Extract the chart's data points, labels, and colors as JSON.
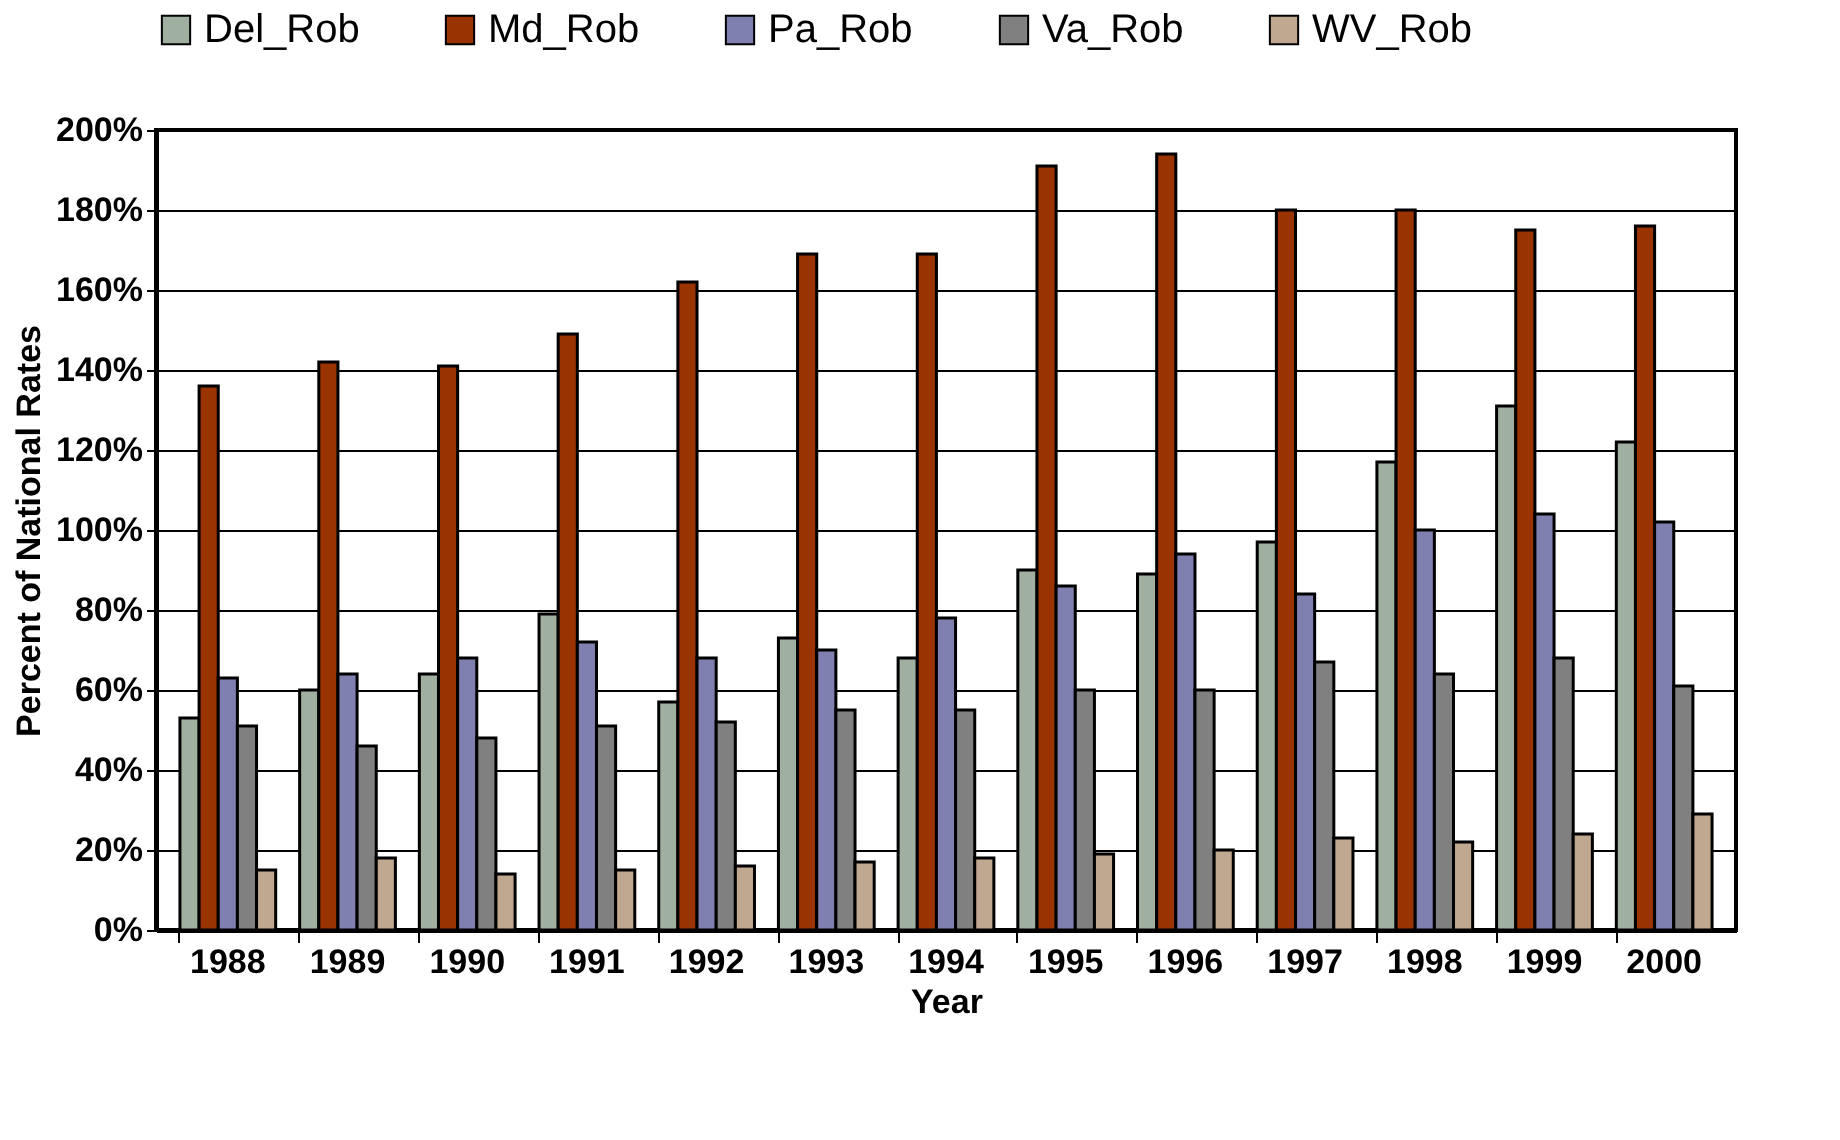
{
  "chart_data": {
    "type": "bar",
    "xlabel": "Year",
    "ylabel": "Percent of National Rates",
    "categories": [
      "1988",
      "1989",
      "1990",
      "1991",
      "1992",
      "1993",
      "1994",
      "1995",
      "1996",
      "1997",
      "1998",
      "1999",
      "2000"
    ],
    "series": [
      {
        "name": "Del_Rob",
        "color": "#a0b0a0",
        "values": [
          53,
          60,
          64,
          79,
          57,
          73,
          68,
          90,
          89,
          97,
          117,
          131,
          122
        ]
      },
      {
        "name": "Md_Rob",
        "color": "#993300",
        "values": [
          136,
          142,
          141,
          149,
          162,
          169,
          169,
          191,
          194,
          180,
          180,
          175,
          176
        ]
      },
      {
        "name": "Pa_Rob",
        "color": "#8080b0",
        "values": [
          63,
          64,
          68,
          72,
          68,
          70,
          78,
          86,
          94,
          84,
          100,
          104,
          102
        ]
      },
      {
        "name": "Va_Rob",
        "color": "#808080",
        "values": [
          51,
          46,
          48,
          51,
          52,
          55,
          55,
          60,
          60,
          67,
          64,
          68,
          61
        ]
      },
      {
        "name": "WV_Rob",
        "color": "#c0a890",
        "values": [
          15,
          18,
          14,
          15,
          16,
          17,
          18,
          19,
          20,
          23,
          22,
          24,
          29
        ]
      }
    ],
    "ylim": [
      0,
      200
    ],
    "yticks": [
      {
        "value": 0,
        "label": "0%"
      },
      {
        "value": 20,
        "label": "20%"
      },
      {
        "value": 40,
        "label": "40%"
      },
      {
        "value": 60,
        "label": "60%"
      },
      {
        "value": 80,
        "label": "80%"
      },
      {
        "value": 100,
        "label": "100%"
      },
      {
        "value": 120,
        "label": "120%"
      },
      {
        "value": 140,
        "label": "140%"
      },
      {
        "value": 160,
        "label": "160%"
      },
      {
        "value": 180,
        "label": "180%"
      },
      {
        "value": 200,
        "label": "200%"
      }
    ],
    "grid": "y",
    "legend": "top"
  }
}
